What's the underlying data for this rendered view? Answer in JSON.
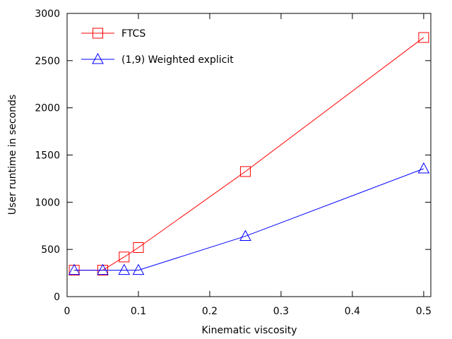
{
  "chart_data": {
    "type": "line",
    "title": "",
    "xlabel": "Kinematic viscosity",
    "ylabel": "User runtime in seconds",
    "xlim": [
      0,
      0.51
    ],
    "ylim": [
      0,
      3000
    ],
    "xticks": [
      0,
      0.1,
      0.2,
      0.3,
      0.4,
      0.5
    ],
    "xtick_labels": [
      "0",
      "0.1",
      "0.2",
      "0.3",
      "0.4",
      "0.5"
    ],
    "yticks": [
      0,
      500,
      1000,
      1500,
      2000,
      2500,
      3000
    ],
    "ytick_labels": [
      "0",
      "500",
      "1000",
      "1500",
      "2000",
      "2500",
      "3000"
    ],
    "grid": false,
    "legend_position": "top-left",
    "series": [
      {
        "name": "FTCS",
        "color": "#ff0000",
        "marker": "square",
        "x": [
          0.01,
          0.05,
          0.08,
          0.1,
          0.25,
          0.5
        ],
        "y": [
          280,
          280,
          420,
          520,
          1325,
          2745
        ]
      },
      {
        "name": "(1,9) Weighted explicit",
        "color": "#0000ff",
        "marker": "triangle",
        "x": [
          0.01,
          0.05,
          0.08,
          0.1,
          0.25,
          0.5
        ],
        "y": [
          280,
          280,
          280,
          280,
          640,
          1355
        ]
      }
    ]
  }
}
